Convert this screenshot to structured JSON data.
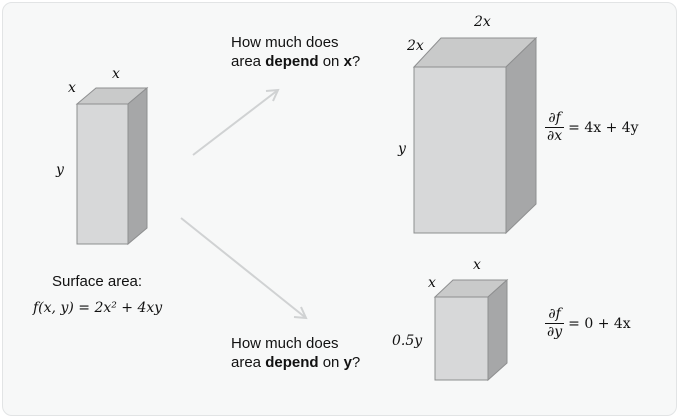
{
  "left_box": {
    "dims": {
      "top_x": "x",
      "side_x": "x",
      "y": "y"
    },
    "caption": "Surface area:",
    "formula": "f(x, y) = 2x² + 4xy"
  },
  "question_x": {
    "line1": "How much does",
    "pre": "area ",
    "bold": "depend",
    "mid": " on ",
    "var": "x",
    "end": "?"
  },
  "question_y": {
    "line1": "How much does",
    "pre": "area ",
    "bold": "depend",
    "mid": " on ",
    "var": "y",
    "end": "?"
  },
  "top_box": {
    "dims": {
      "top": "2x",
      "side": "2x",
      "y": "y"
    },
    "partial": {
      "num": "∂f",
      "den": "∂x",
      "rhs": "= 4x + 4y"
    }
  },
  "bottom_box": {
    "dims": {
      "top": "x",
      "side": "x",
      "y": "0.5y"
    },
    "partial": {
      "num": "∂f",
      "den": "∂y",
      "rhs": "= 0 + 4x"
    }
  },
  "colors": {
    "box_front": "#d7d8d9",
    "box_top": "#c9caca",
    "box_side": "#a6a7a8",
    "edge": "#8e8f90",
    "arrow": "#d0d2d3"
  }
}
